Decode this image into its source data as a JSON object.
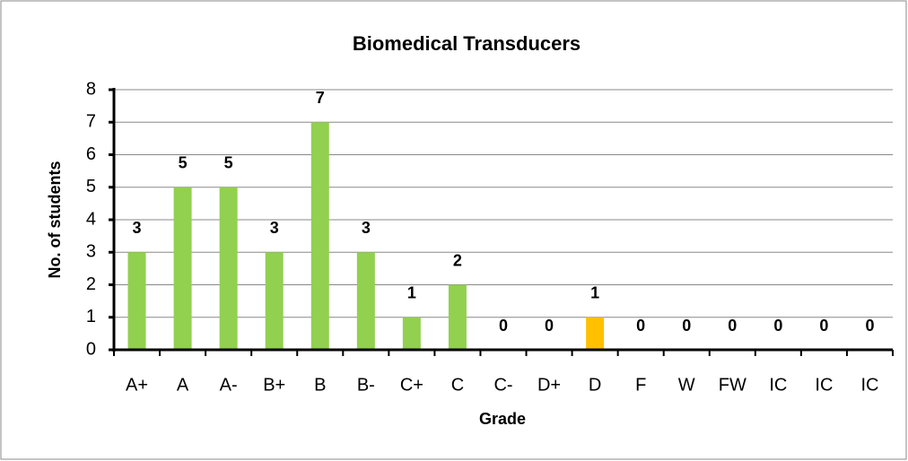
{
  "chart_data": {
    "type": "bar",
    "title": "Biomedical Transducers",
    "x_label": "Grade",
    "y_label": "No. of students",
    "categories": [
      "A+",
      "A",
      "A-",
      "B+",
      "B",
      "B-",
      "C+",
      "C",
      "C-",
      "D+",
      "D",
      "F",
      "W",
      "FW",
      "IC",
      "IC",
      "IC"
    ],
    "values": [
      3,
      5,
      5,
      3,
      7,
      3,
      1,
      2,
      0,
      0,
      1,
      0,
      0,
      0,
      0,
      0,
      0
    ],
    "colors": [
      "#92d050",
      "#92d050",
      "#92d050",
      "#92d050",
      "#92d050",
      "#92d050",
      "#92d050",
      "#92d050",
      "#92d050",
      "#92d050",
      "#ffc000",
      "#92d050",
      "#92d050",
      "#92d050",
      "#92d050",
      "#92d050",
      "#92d050"
    ],
    "ylim": [
      0,
      8
    ],
    "yticks": [
      0,
      1,
      2,
      3,
      4,
      5,
      6,
      7,
      8
    ],
    "grid": true
  }
}
